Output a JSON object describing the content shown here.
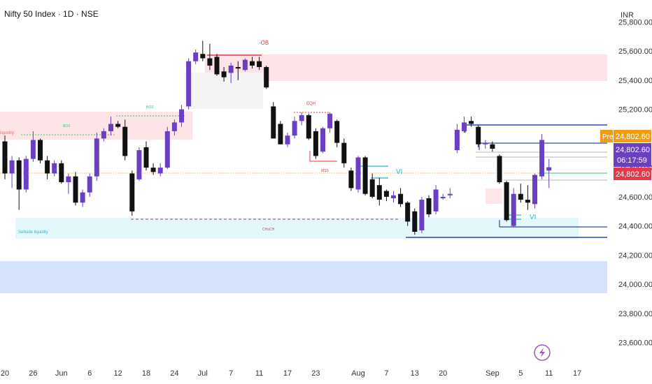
{
  "header": {
    "title": "Nifty 50 Index · 1D · NSE",
    "currency": "INR"
  },
  "colors": {
    "up": "#6b3fc4",
    "down": "#111111",
    "bg": "#ffffff",
    "axis_text": "#333333",
    "premium_zone": "#fde3e5",
    "discount_zone": "#e4f8fb",
    "blue_band": "#d6e4fb",
    "sweep_line": "#2a4aa8",
    "vi_color": "#26b8c8",
    "pre_tag": "#f39c12",
    "price_tag_purple": "#6a3fc0",
    "price_tag_red": "#e53945"
  },
  "price_tags": {
    "pre_label": "Pre",
    "pre_price": "24,802.60",
    "last_price": "24,802.60",
    "countdown": "06:17:59",
    "close_price": "24,802.60"
  },
  "bolt_icon": "lightning-icon",
  "chart_data": {
    "type": "candlestick",
    "title": "Nifty 50 Index · 1D · NSE",
    "ylim": [
      23450,
      25950
    ],
    "y_ticks": [
      25800,
      25600,
      25400,
      25200,
      24800,
      24600,
      24400,
      24200,
      24000,
      23800,
      23600
    ],
    "y_tick_labels": [
      "25,800.00",
      "25,600.00",
      "25,400.00",
      "25,200.00",
      "24,800.00",
      "24,600.00",
      "24,400.00",
      "24,200.00",
      "24,000.00",
      "23,800.00",
      "23,600.00"
    ],
    "x_labels": [
      {
        "label": "20",
        "idx": 0
      },
      {
        "label": "26",
        "idx": 4
      },
      {
        "label": "Jun",
        "idx": 8
      },
      {
        "label": "6",
        "idx": 12
      },
      {
        "label": "12",
        "idx": 16
      },
      {
        "label": "18",
        "idx": 20
      },
      {
        "label": "24",
        "idx": 24
      },
      {
        "label": "Jul",
        "idx": 28
      },
      {
        "label": "7",
        "idx": 32
      },
      {
        "label": "11",
        "idx": 36
      },
      {
        "label": "17",
        "idx": 40
      },
      {
        "label": "23",
        "idx": 44
      },
      {
        "label": "Aug",
        "idx": 50
      },
      {
        "label": "7",
        "idx": 54
      },
      {
        "label": "13",
        "idx": 58
      },
      {
        "label": "20",
        "idx": 62
      },
      {
        "label": "Sep",
        "idx": 69
      },
      {
        "label": "5",
        "idx": 73
      },
      {
        "label": "11",
        "idx": 77
      },
      {
        "label": "17",
        "idx": 81
      }
    ],
    "candles": [
      {
        "o": 24980,
        "h": 25020,
        "l": 24720,
        "c": 24760
      },
      {
        "o": 24760,
        "h": 24880,
        "l": 24660,
        "c": 24850
      },
      {
        "o": 24850,
        "h": 24870,
        "l": 24510,
        "c": 24650
      },
      {
        "o": 24650,
        "h": 24880,
        "l": 24630,
        "c": 24860
      },
      {
        "o": 24860,
        "h": 25050,
        "l": 24840,
        "c": 24990
      },
      {
        "o": 24990,
        "h": 25000,
        "l": 24830,
        "c": 24850
      },
      {
        "o": 24850,
        "h": 24880,
        "l": 24720,
        "c": 24760
      },
      {
        "o": 24760,
        "h": 24850,
        "l": 24740,
        "c": 24830
      },
      {
        "o": 24830,
        "h": 24850,
        "l": 24690,
        "c": 24700
      },
      {
        "o": 24700,
        "h": 24760,
        "l": 24620,
        "c": 24740
      },
      {
        "o": 24740,
        "h": 24770,
        "l": 24540,
        "c": 24560
      },
      {
        "o": 24560,
        "h": 24650,
        "l": 24530,
        "c": 24630
      },
      {
        "o": 24630,
        "h": 24760,
        "l": 24600,
        "c": 24740
      },
      {
        "o": 24740,
        "h": 25040,
        "l": 24710,
        "c": 25000
      },
      {
        "o": 25000,
        "h": 25070,
        "l": 24980,
        "c": 25050
      },
      {
        "o": 25050,
        "h": 25150,
        "l": 25020,
        "c": 25100
      },
      {
        "o": 25100,
        "h": 25120,
        "l": 25070,
        "c": 25080
      },
      {
        "o": 25080,
        "h": 25130,
        "l": 24850,
        "c": 24880
      },
      {
        "o": 24760,
        "h": 24780,
        "l": 24470,
        "c": 24500
      },
      {
        "o": 24720,
        "h": 24940,
        "l": 24710,
        "c": 24920
      },
      {
        "o": 24940,
        "h": 24980,
        "l": 24780,
        "c": 24800
      },
      {
        "o": 24800,
        "h": 24830,
        "l": 24750,
        "c": 24770
      },
      {
        "o": 24760,
        "h": 24830,
        "l": 24740,
        "c": 24800
      },
      {
        "o": 24800,
        "h": 25080,
        "l": 24790,
        "c": 25050
      },
      {
        "o": 25050,
        "h": 25130,
        "l": 25020,
        "c": 25110
      },
      {
        "o": 25110,
        "h": 25230,
        "l": 25080,
        "c": 25200
      },
      {
        "o": 25220,
        "h": 25550,
        "l": 25200,
        "c": 25530
      },
      {
        "o": 25530,
        "h": 25610,
        "l": 25510,
        "c": 25590
      },
      {
        "o": 25580,
        "h": 25670,
        "l": 25530,
        "c": 25550
      },
      {
        "o": 25550,
        "h": 25650,
        "l": 25470,
        "c": 25500
      },
      {
        "o": 25560,
        "h": 25580,
        "l": 25430,
        "c": 25440
      },
      {
        "o": 25460,
        "h": 25490,
        "l": 25390,
        "c": 25420
      },
      {
        "o": 25450,
        "h": 25520,
        "l": 25380,
        "c": 25500
      },
      {
        "o": 25490,
        "h": 25530,
        "l": 25400,
        "c": 25480
      },
      {
        "o": 25470,
        "h": 25550,
        "l": 25460,
        "c": 25540
      },
      {
        "o": 25530,
        "h": 25560,
        "l": 25480,
        "c": 25500
      },
      {
        "o": 25530,
        "h": 25560,
        "l": 25470,
        "c": 25490
      },
      {
        "o": 25490,
        "h": 25500,
        "l": 25340,
        "c": 25350
      },
      {
        "o": 25220,
        "h": 25250,
        "l": 25010,
        "c": 25000
      },
      {
        "o": 25100,
        "h": 25120,
        "l": 24960,
        "c": 24960
      },
      {
        "o": 24960,
        "h": 25040,
        "l": 24940,
        "c": 25020
      },
      {
        "o": 25020,
        "h": 25150,
        "l": 25000,
        "c": 25120
      },
      {
        "o": 25120,
        "h": 25180,
        "l": 25090,
        "c": 25160
      },
      {
        "o": 25160,
        "h": 25170,
        "l": 24990,
        "c": 25000
      },
      {
        "o": 25050,
        "h": 25070,
        "l": 24860,
        "c": 24880
      },
      {
        "o": 24910,
        "h": 25080,
        "l": 24900,
        "c": 25070
      },
      {
        "o": 25070,
        "h": 25180,
        "l": 25040,
        "c": 25170
      },
      {
        "o": 25120,
        "h": 25130,
        "l": 24940,
        "c": 24970
      },
      {
        "o": 24970,
        "h": 25000,
        "l": 24800,
        "c": 24830
      },
      {
        "o": 24780,
        "h": 24800,
        "l": 24640,
        "c": 24660
      },
      {
        "o": 24650,
        "h": 24880,
        "l": 24630,
        "c": 24870
      },
      {
        "o": 24870,
        "h": 24880,
        "l": 24610,
        "c": 24620
      },
      {
        "o": 24720,
        "h": 24760,
        "l": 24590,
        "c": 24600
      },
      {
        "o": 24680,
        "h": 24730,
        "l": 24540,
        "c": 24580
      },
      {
        "o": 24640,
        "h": 24650,
        "l": 24570,
        "c": 24600
      },
      {
        "o": 24590,
        "h": 24640,
        "l": 24560,
        "c": 24610
      },
      {
        "o": 24620,
        "h": 24660,
        "l": 24530,
        "c": 24550
      },
      {
        "o": 24560,
        "h": 24570,
        "l": 24400,
        "c": 24430
      },
      {
        "o": 24500,
        "h": 24520,
        "l": 24340,
        "c": 24360
      },
      {
        "o": 24370,
        "h": 24600,
        "l": 24350,
        "c": 24580
      },
      {
        "o": 24590,
        "h": 24610,
        "l": 24460,
        "c": 24480
      },
      {
        "o": 24500,
        "h": 24680,
        "l": 24480,
        "c": 24650
      },
      {
        "o": 24590,
        "h": 24620,
        "l": 24580,
        "c": 24600
      },
      {
        "o": 24610,
        "h": 24660,
        "l": 24590,
        "c": 24620
      },
      {
        "o": 24920,
        "h": 25100,
        "l": 24900,
        "c": 25060
      },
      {
        "o": 25050,
        "h": 25150,
        "l": 25040,
        "c": 25110
      },
      {
        "o": 25120,
        "h": 25150,
        "l": 25080,
        "c": 25100
      },
      {
        "o": 25080,
        "h": 25090,
        "l": 24940,
        "c": 24960
      },
      {
        "o": 24960,
        "h": 24990,
        "l": 24930,
        "c": 24970
      },
      {
        "o": 24960,
        "h": 24980,
        "l": 24910,
        "c": 24930
      },
      {
        "o": 24880,
        "h": 24890,
        "l": 24690,
        "c": 24700
      },
      {
        "o": 24700,
        "h": 24710,
        "l": 24430,
        "c": 24440
      },
      {
        "o": 24400,
        "h": 24660,
        "l": 24390,
        "c": 24620
      },
      {
        "o": 24620,
        "h": 24690,
        "l": 24560,
        "c": 24580
      },
      {
        "o": 24580,
        "h": 24680,
        "l": 24510,
        "c": 24560
      },
      {
        "o": 24550,
        "h": 24760,
        "l": 24520,
        "c": 24750
      },
      {
        "o": 24740,
        "h": 25030,
        "l": 24720,
        "c": 24990
      },
      {
        "o": 24780,
        "h": 24860,
        "l": 24660,
        "c": 24802.6
      }
    ]
  }
}
